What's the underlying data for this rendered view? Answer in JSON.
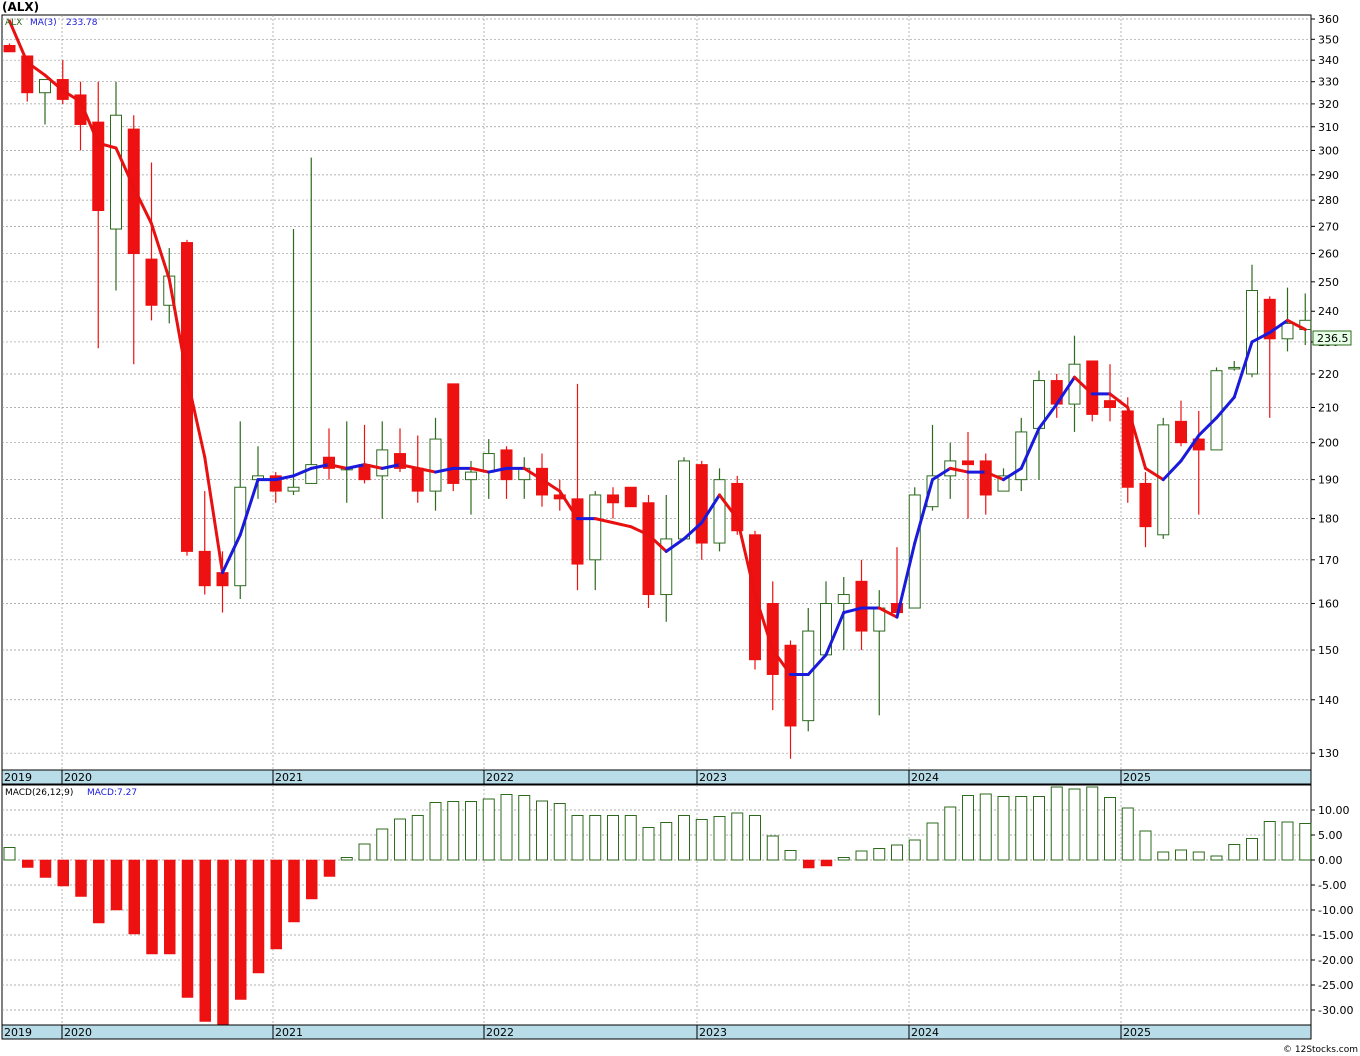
{
  "title": "(ALX)",
  "footer": "© 12Stocks.com",
  "chart_data": [
    {
      "type": "candlestick",
      "legend": {
        "symbol": "ALX",
        "ma_label": "MA(3)",
        "ma_value": "233.78"
      },
      "last_price_label": "236.5",
      "ylim": [
        127,
        362
      ],
      "yscale": "log",
      "y_ticks": [
        130,
        140,
        150,
        160,
        170,
        180,
        190,
        200,
        210,
        220,
        230,
        240,
        250,
        260,
        270,
        280,
        290,
        300,
        310,
        320,
        330,
        340,
        350,
        360
      ],
      "x_year_labels": [
        "2019",
        "2020",
        "2021",
        "2022",
        "2023",
        "2024",
        "2025"
      ],
      "grid": true,
      "colors": {
        "up_fill": "#ffffff",
        "up_stroke": "#2d6a1e",
        "down_fill": "#ee1111",
        "ma_up": "#1a1adc",
        "ma_down": "#e81010",
        "label_band": "#b8dde8",
        "last_label_bg": "#e6ffe6"
      },
      "candles": [
        [
          347,
          344,
          348,
          344
        ],
        [
          342,
          325,
          334,
          321
        ],
        [
          325,
          331,
          331,
          311
        ],
        [
          331,
          322,
          340,
          320
        ],
        [
          324,
          311,
          330,
          300
        ],
        [
          312,
          276,
          330,
          228
        ],
        [
          269,
          315,
          330,
          247
        ],
        [
          309,
          260,
          315,
          223
        ],
        [
          258,
          242,
          295,
          237
        ],
        [
          242,
          252,
          262,
          236
        ],
        [
          264,
          172,
          265,
          171
        ],
        [
          172,
          164,
          187,
          162
        ],
        [
          167,
          164,
          172,
          158
        ],
        [
          164,
          188,
          206,
          161
        ],
        [
          190,
          191,
          199,
          185
        ],
        [
          191,
          187,
          192,
          184
        ],
        [
          187,
          188,
          269,
          186
        ],
        [
          189,
          194,
          297,
          189
        ],
        [
          196,
          193,
          204,
          190
        ],
        [
          193,
          193,
          206,
          184
        ],
        [
          194,
          190,
          205,
          189
        ],
        [
          191,
          198,
          206,
          180
        ],
        [
          197,
          193,
          204,
          192
        ],
        [
          193,
          187,
          202,
          184
        ],
        [
          187,
          201,
          207,
          182
        ],
        [
          217,
          189,
          217,
          187
        ],
        [
          190,
          192,
          195,
          181
        ],
        [
          192,
          197,
          201,
          185
        ],
        [
          198,
          190,
          199,
          185
        ],
        [
          190,
          193,
          196,
          185
        ],
        [
          193,
          186,
          197,
          183
        ],
        [
          186,
          185,
          190,
          182
        ],
        [
          185,
          169,
          217,
          163
        ],
        [
          170,
          186,
          187,
          163
        ],
        [
          186,
          184,
          188,
          180
        ],
        [
          188,
          183,
          188,
          183
        ],
        [
          184,
          162,
          186,
          159
        ],
        [
          162,
          175,
          186,
          156
        ],
        [
          175,
          195,
          196,
          175
        ],
        [
          194,
          174,
          195,
          170
        ],
        [
          174,
          190,
          193,
          172
        ],
        [
          189,
          177,
          191,
          176
        ],
        [
          176,
          148,
          177,
          146
        ],
        [
          160,
          145,
          165,
          138
        ],
        [
          151,
          135,
          152,
          129
        ],
        [
          136,
          154,
          159,
          134
        ],
        [
          149,
          160,
          165,
          149
        ],
        [
          160,
          162,
          166,
          150
        ],
        [
          165,
          154,
          170,
          150
        ],
        [
          154,
          159,
          163,
          137
        ],
        [
          160,
          158,
          173,
          158
        ],
        [
          159,
          186,
          188,
          159
        ],
        [
          183,
          191,
          205,
          182
        ],
        [
          191,
          195,
          200,
          185
        ],
        [
          195,
          194,
          203,
          180
        ],
        [
          195,
          186,
          197,
          181
        ],
        [
          187,
          191,
          193,
          187
        ],
        [
          190,
          203,
          207,
          187
        ],
        [
          204,
          218,
          221,
          190
        ],
        [
          218,
          211,
          220,
          207
        ],
        [
          211,
          223,
          232,
          203
        ],
        [
          224,
          208,
          224,
          206
        ],
        [
          212,
          210,
          223,
          206
        ],
        [
          209,
          188,
          213,
          184
        ],
        [
          189,
          178,
          192,
          173
        ],
        [
          176,
          205,
          207,
          175
        ],
        [
          206,
          200,
          212,
          199
        ],
        [
          201,
          198,
          209,
          181
        ],
        [
          198,
          221,
          222,
          198
        ],
        [
          222,
          222,
          224,
          221
        ],
        [
          220,
          247,
          256,
          219
        ],
        [
          244,
          231,
          245,
          207
        ],
        [
          231,
          236,
          248,
          227
        ],
        [
          234,
          237,
          246,
          229
        ]
      ],
      "ma3": [
        359,
        339,
        333,
        326,
        321,
        303,
        301,
        285,
        271,
        251,
        219,
        196,
        167,
        176,
        190,
        190,
        191,
        193,
        194,
        193,
        194,
        193,
        194,
        193,
        192,
        193,
        193,
        192,
        193,
        193,
        190,
        187,
        180,
        180,
        179,
        178,
        176,
        172,
        175,
        179,
        186,
        180,
        162,
        150,
        145,
        145,
        149,
        158,
        159,
        159,
        157,
        174,
        190,
        193,
        192,
        192,
        190,
        193,
        204,
        211,
        219,
        214,
        214,
        210,
        193,
        190,
        195,
        202,
        207,
        213,
        230,
        233,
        237,
        234
      ]
    },
    {
      "type": "bar",
      "name": "MACD(26,12,9)",
      "legend_value_label": "MACD:7.27",
      "ylim": [
        -33,
        15
      ],
      "y_ticks": [
        10,
        5,
        0,
        -5,
        -10,
        -15,
        -20,
        -25,
        -30
      ],
      "y_tick_labels": [
        "10.00",
        "5.00",
        "0.00",
        "-5.00",
        "-10.00",
        "-15.00",
        "-20.00",
        "-25.00",
        "-30.00"
      ],
      "x_year_labels": [
        "2019",
        "2020",
        "2021",
        "2022",
        "2023",
        "2024",
        "2025"
      ],
      "colors": {
        "positive_fill": "#ffffff",
        "positive_stroke": "#2d6a1e",
        "negative": "#ee1111"
      },
      "values": [
        2.5,
        -1.5,
        -3.5,
        -5.2,
        -7.3,
        -12.6,
        -10,
        -14.8,
        -18.8,
        -18.8,
        -27.5,
        -32.3,
        -33,
        -27.9,
        -22.6,
        -17.8,
        -12.4,
        -7.8,
        -3.3,
        0.5,
        3.2,
        6.2,
        8.2,
        8.9,
        11.5,
        11.7,
        11.7,
        12.2,
        13.1,
        12.9,
        11.8,
        11.3,
        8.9,
        8.9,
        8.9,
        8.9,
        6.5,
        7.5,
        8.9,
        8.1,
        8.7,
        9.4,
        8.9,
        4.8,
        1.9,
        -1.6,
        -1.2,
        0.5,
        1.8,
        2.3,
        3,
        4,
        7.4,
        10.6,
        12.9,
        13.2,
        12.7,
        12.7,
        12.7,
        14.6,
        14.2,
        14.6,
        12.5,
        10.4,
        5.8,
        1.6,
        2,
        1.6,
        0.8,
        3.1,
        4.3,
        7.7,
        7.6,
        7.3
      ]
    }
  ]
}
